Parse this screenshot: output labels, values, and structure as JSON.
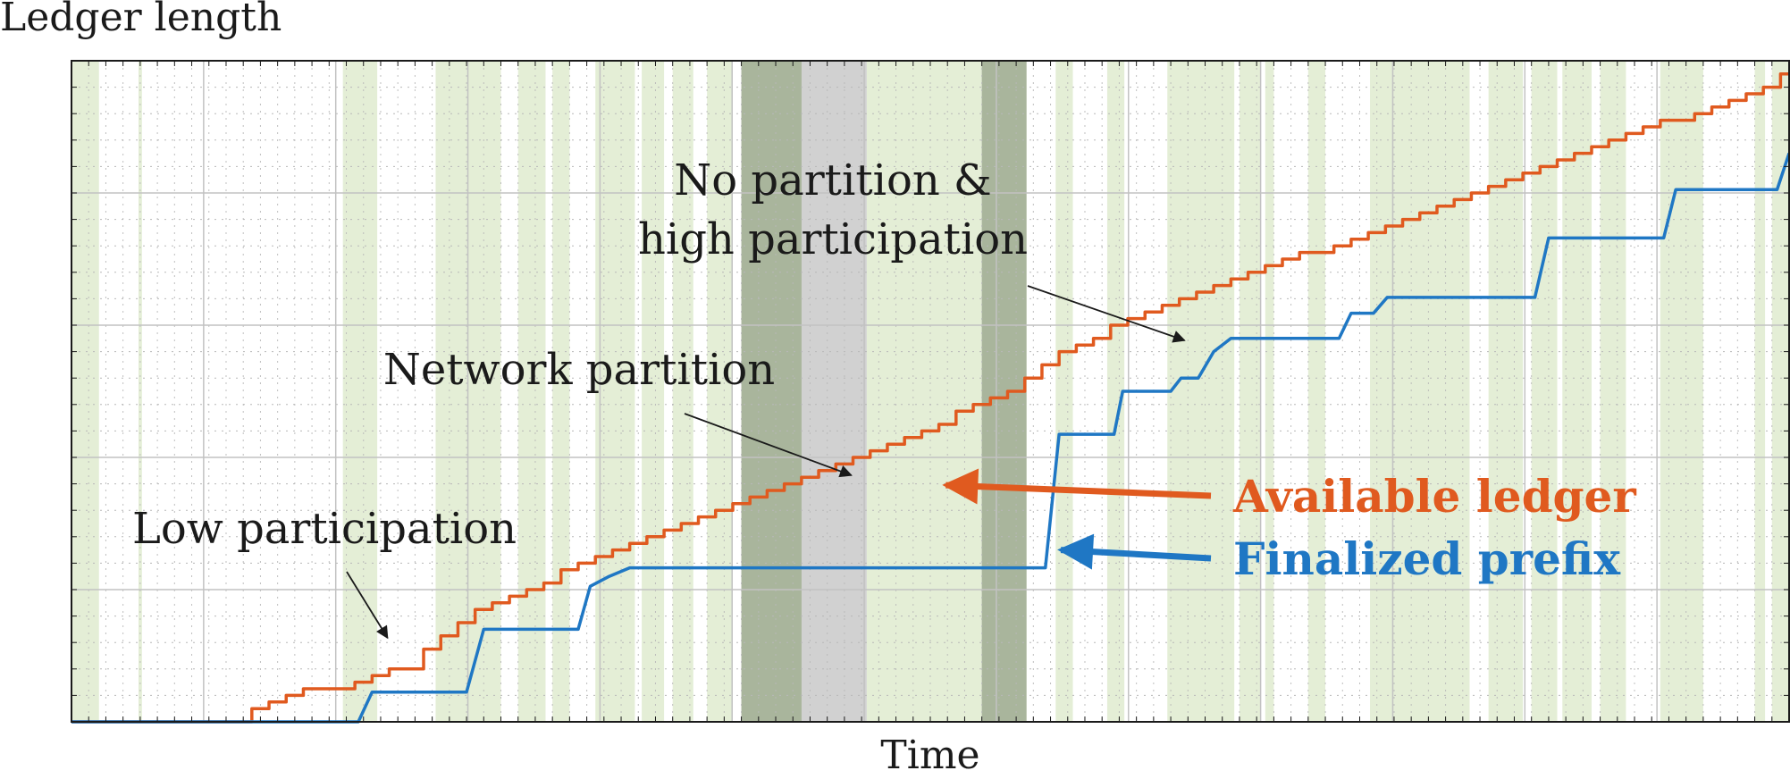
{
  "chart_data": {
    "type": "line",
    "title": "",
    "xlabel": "Time",
    "ylabel": "Ledger length",
    "xlim": [
      0,
      100
    ],
    "ylim": [
      0,
      100
    ],
    "grid": true,
    "ticks": false,
    "series": [
      {
        "name": "Available ledger",
        "color": "#e05a1f",
        "step": false,
        "x": [
          0,
          10,
          11,
          12,
          13,
          14,
          15,
          16,
          17,
          18,
          19,
          20,
          21,
          22,
          23,
          24,
          25,
          26,
          27,
          28,
          29,
          30,
          31,
          32,
          33,
          34,
          35,
          36,
          37,
          38,
          39,
          40,
          41,
          42,
          43,
          44,
          45,
          46,
          47,
          48,
          49,
          50,
          51,
          52,
          53,
          54,
          55,
          56,
          57,
          58,
          59,
          60,
          61,
          62,
          63,
          64,
          65,
          66,
          67,
          68,
          69,
          70,
          71,
          72,
          73,
          74,
          75,
          76,
          77,
          78,
          79,
          80,
          81,
          82,
          83,
          84,
          85,
          86,
          87,
          88,
          89,
          90,
          91,
          92,
          93,
          94,
          95,
          96,
          97,
          98,
          99,
          100
        ],
        "y": [
          0,
          0,
          2,
          3,
          4,
          5,
          5,
          5,
          6,
          7,
          8,
          8,
          11,
          13,
          15,
          17,
          18,
          19,
          20,
          21,
          23,
          24,
          25,
          26,
          27,
          28,
          29,
          30,
          31,
          32,
          33,
          34,
          35,
          36,
          37,
          38,
          39,
          40,
          41,
          42,
          43,
          44,
          45,
          47,
          48,
          49,
          50,
          52,
          54,
          56,
          57,
          58,
          60,
          61,
          62,
          63,
          64,
          65,
          66,
          67,
          68,
          69,
          70,
          71,
          71,
          72,
          73,
          74,
          75,
          76,
          77,
          78,
          79,
          80,
          81,
          82,
          83,
          84,
          85,
          86,
          87,
          88,
          89,
          90,
          91,
          91,
          92,
          93,
          94,
          95,
          96,
          98
        ]
      },
      {
        "name": "Finalized prefix",
        "color": "#1f77c4",
        "step": true,
        "x": [
          0,
          16.7,
          17.5,
          23,
          24,
          29.5,
          30.2,
          31.3,
          32.5,
          56.7,
          57.5,
          60.7,
          61.2,
          64,
          64.6,
          65.6,
          66.5,
          67.5,
          73.8,
          74.5,
          75.8,
          76.6,
          85.2,
          86,
          92.7,
          93.4,
          99.3,
          100
        ],
        "y": [
          0,
          0,
          4.5,
          4.5,
          14,
          14,
          20.5,
          22,
          23.3,
          23.3,
          43.5,
          43.5,
          50,
          50,
          52,
          52,
          56,
          58,
          58,
          61.8,
          61.8,
          64.2,
          64.2,
          73.2,
          73.2,
          80.5,
          80.5,
          86
        ]
      }
    ],
    "bands": [
      {
        "type": "high",
        "x0": 0.0,
        "x1": 1.6
      },
      {
        "type": "high",
        "x0": 3.9,
        "x1": 4.1
      },
      {
        "type": "high",
        "x0": 15.8,
        "x1": 17.8
      },
      {
        "type": "high",
        "x0": 21.2,
        "x1": 25.0
      },
      {
        "type": "high",
        "x0": 26.0,
        "x1": 27.6
      },
      {
        "type": "high",
        "x0": 28.0,
        "x1": 29.0
      },
      {
        "type": "high",
        "x0": 30.5,
        "x1": 32.8
      },
      {
        "type": "high",
        "x0": 33.2,
        "x1": 34.5
      },
      {
        "type": "high",
        "x0": 35.0,
        "x1": 36.2
      },
      {
        "type": "high",
        "x0": 37.0,
        "x1": 38.5
      },
      {
        "type": "partition",
        "x0": 39.0,
        "x1": 46.3
      },
      {
        "type": "high",
        "x0": 46.3,
        "x1": 53.0
      },
      {
        "type": "high",
        "x0": 53.0,
        "x1": 55.6
      },
      {
        "type": "partition",
        "x0": 53.0,
        "x1": 55.6
      },
      {
        "type": "high",
        "x0": 57.3,
        "x1": 58.3
      },
      {
        "type": "high",
        "x0": 60.3,
        "x1": 61.3
      },
      {
        "type": "high",
        "x0": 63.8,
        "x1": 67.7
      },
      {
        "type": "high",
        "x0": 68.0,
        "x1": 69.2
      },
      {
        "type": "high",
        "x0": 69.5,
        "x1": 70.0
      },
      {
        "type": "high",
        "x0": 72.0,
        "x1": 73.0
      },
      {
        "type": "high",
        "x0": 75.6,
        "x1": 81.4
      },
      {
        "type": "high",
        "x0": 82.5,
        "x1": 84.5
      },
      {
        "type": "high",
        "x0": 85.0,
        "x1": 86.5
      },
      {
        "type": "high",
        "x0": 86.8,
        "x1": 88.5
      },
      {
        "type": "high",
        "x0": 89.0,
        "x1": 90.5
      },
      {
        "type": "high",
        "x0": 92.5,
        "x1": 95.0
      },
      {
        "type": "high",
        "x0": 98.0,
        "x1": 98.6
      },
      {
        "type": "high",
        "x0": 99.0,
        "x1": 100.0
      }
    ],
    "annotations": [
      {
        "id": "low",
        "lines": [
          "Low participation"
        ],
        "target": [
          18.4,
          12.7
        ]
      },
      {
        "id": "net",
        "lines": [
          "Network partition"
        ],
        "target": [
          45.4,
          37.3
        ]
      },
      {
        "id": "hp",
        "lines": [
          "No partition &",
          "high participation"
        ],
        "target": [
          64.8,
          57.7
        ]
      }
    ],
    "legend": {
      "placement": "right",
      "items": [
        {
          "series": "Available ledger",
          "label": "Available ledger",
          "color": "#e05a1f",
          "points_to": [
            50.9,
            35.8
          ]
        },
        {
          "series": "Finalized prefix",
          "label": "Finalized prefix",
          "color": "#1f77c4",
          "points_to": [
            57.6,
            26.0
          ]
        }
      ]
    },
    "colors": {
      "high_participation": "#e4eed6",
      "partition_band": "#c9c9c9",
      "overlap_band": "#a9b59c",
      "grid_major": "#c2c2c2",
      "grid_minor": "#b8b8b8",
      "axis": "#1a1a1a",
      "annotation": "#1a1a1a"
    }
  }
}
